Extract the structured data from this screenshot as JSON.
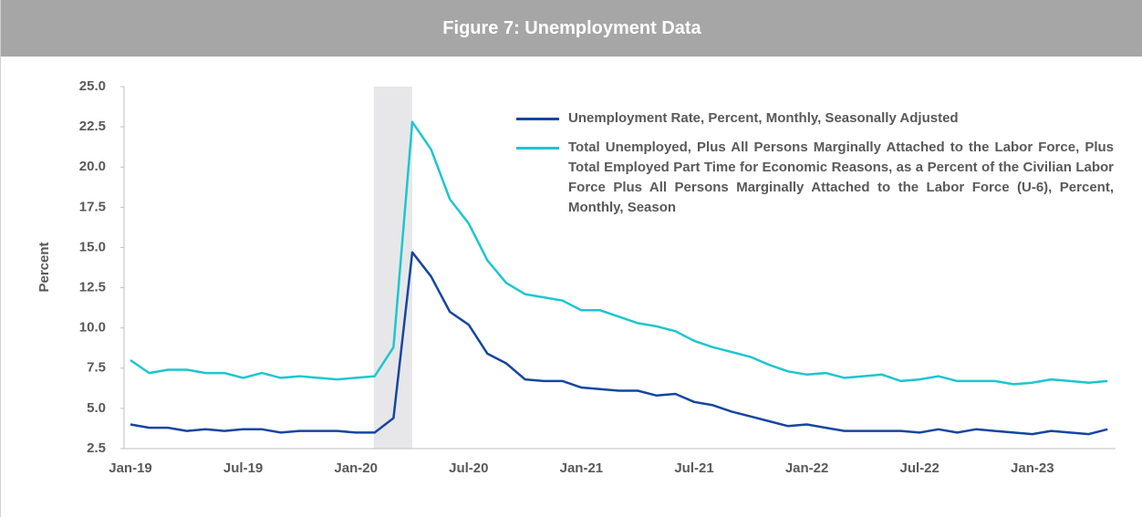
{
  "chart_data": {
    "type": "line",
    "title": "Figure 7: Unemployment Data",
    "y_label": "Percent",
    "categories": [
      "Jan-19",
      null,
      null,
      null,
      null,
      null,
      "Jul-19",
      null,
      null,
      null,
      null,
      null,
      "Jan-20",
      null,
      null,
      null,
      null,
      null,
      "Jul-20",
      null,
      null,
      null,
      null,
      null,
      "Jan-21",
      null,
      null,
      null,
      null,
      null,
      "Jul-21",
      null,
      null,
      null,
      null,
      null,
      "Jan-22",
      null,
      null,
      null,
      null,
      null,
      "Jul-22",
      null,
      null,
      null,
      null,
      null,
      "Jan-23",
      null,
      null,
      null,
      null
    ],
    "series": [
      {
        "name": "Unemployment Rate, Percent, Monthly, Seasonally Adjusted",
        "color": "#1446a0",
        "values": [
          4.0,
          3.8,
          3.8,
          3.6,
          3.7,
          3.6,
          3.7,
          3.7,
          3.5,
          3.6,
          3.6,
          3.6,
          3.5,
          3.5,
          4.4,
          14.7,
          13.2,
          11.0,
          10.2,
          8.4,
          7.8,
          6.8,
          6.7,
          6.7,
          6.3,
          6.2,
          6.1,
          6.1,
          5.8,
          5.9,
          5.4,
          5.2,
          4.8,
          4.5,
          4.2,
          3.9,
          4.0,
          3.8,
          3.6,
          3.6,
          3.6,
          3.6,
          3.5,
          3.7,
          3.5,
          3.7,
          3.6,
          3.5,
          3.4,
          3.6,
          3.5,
          3.4,
          3.7
        ]
      },
      {
        "name": "Total Unemployed, Plus All Persons Marginally Attached to the Labor Force, Plus Total Employed Part Time for Economic Reasons, as a Percent of the Civilian Labor Force Plus All Persons Marginally Attached to the Labor Force (U-6), Percent, Monthly, Season",
        "color": "#1cc6cf",
        "values": [
          8.0,
          7.2,
          7.4,
          7.4,
          7.2,
          7.2,
          6.9,
          7.2,
          6.9,
          7.0,
          6.9,
          6.8,
          6.9,
          7.0,
          8.8,
          22.8,
          21.1,
          18.0,
          16.5,
          14.2,
          12.8,
          12.1,
          11.9,
          11.7,
          11.1,
          11.1,
          10.7,
          10.3,
          10.1,
          9.8,
          9.2,
          8.8,
          8.5,
          8.2,
          7.7,
          7.3,
          7.1,
          7.2,
          6.9,
          7.0,
          7.1,
          6.7,
          6.8,
          7.0,
          6.7,
          6.7,
          6.7,
          6.5,
          6.6,
          6.8,
          6.7,
          6.6,
          6.7
        ]
      }
    ],
    "ylim": [
      2.5,
      25.0
    ],
    "yticks": [
      {
        "value": 2.5,
        "label": "2.5"
      },
      {
        "value": 5,
        "label": "5.0"
      },
      {
        "value": 7.5,
        "label": "7.5"
      },
      {
        "value": 10,
        "label": "10.0"
      },
      {
        "value": 12.5,
        "label": "12.5"
      },
      {
        "value": 15,
        "label": "15.0"
      },
      {
        "value": 17.5,
        "label": "17.5"
      },
      {
        "value": 20,
        "label": "20.0"
      },
      {
        "value": 22.5,
        "label": "22.5"
      },
      {
        "value": 25,
        "label": "25.0"
      }
    ],
    "shaded_index_range": [
      13,
      15
    ],
    "shade_color": "#e7e7ea",
    "legend": "top-right"
  }
}
